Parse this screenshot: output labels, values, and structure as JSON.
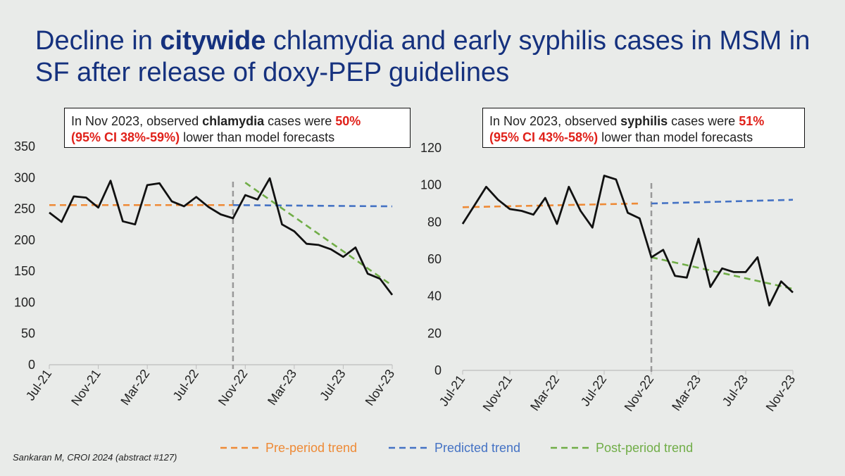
{
  "title": {
    "part1": "Decline in ",
    "part2": "citywide",
    "part3": " chlamydia and early syphilis cases in MSM in SF after release of doxy-PEP guidelines"
  },
  "callouts": {
    "left": {
      "t1": "In Nov 2023, observed ",
      "t2": "chlamydia",
      "t3": " cases were ",
      "t4": "50%",
      "t5": "(95% CI 38%-59%)",
      "t6": " lower than model forecasts"
    },
    "right": {
      "t1": "In Nov 2023, observed ",
      "t2": "syphilis",
      "t3": " cases were ",
      "t4": "51%",
      "t5": "(95% CI 43%-58%)",
      "t6": " lower than model forecasts"
    }
  },
  "legend": {
    "pre": "Pre-period trend",
    "predicted": "Predicted trend",
    "post": "Post-period trend"
  },
  "colors": {
    "title": "#15317e",
    "highlight": "#e0211a",
    "pre": "#ee8a36",
    "predicted": "#4472c4",
    "post": "#70ad47",
    "observed": "#111111",
    "divider": "#999999"
  },
  "citation": "Sankaran M, CROI 2024 (abstract #127)",
  "chart_data": [
    {
      "type": "line",
      "x_tick_labels": [
        "Jul-21",
        "Nov-21",
        "Mar-22",
        "Jul-22",
        "Nov-22",
        "Mar-23",
        "Jul-23",
        "Nov-23"
      ],
      "x_range": [
        "Jul-21",
        "Nov-23"
      ],
      "ylim": [
        0,
        350
      ],
      "y_ticks": [
        0,
        50,
        100,
        150,
        200,
        250,
        300,
        350
      ],
      "intervention_month": "Oct-22",
      "observed": [
        244,
        229,
        270,
        268,
        252,
        295,
        230,
        225,
        288,
        291,
        262,
        254,
        269,
        253,
        241,
        235,
        272,
        265,
        299,
        225,
        214,
        194,
        192,
        185,
        173,
        188,
        146,
        138,
        112
      ],
      "pre_trend": {
        "from": [
          "Jul-21",
          256
        ],
        "to": [
          "Oct-22",
          256
        ]
      },
      "predicted_trend": {
        "from": [
          "Oct-22",
          256
        ],
        "to": [
          "Nov-23",
          254
        ]
      },
      "post_trend": {
        "from": [
          "Nov-22",
          292
        ],
        "to": [
          "Nov-23",
          127
        ]
      }
    },
    {
      "type": "line",
      "x_tick_labels": [
        "Jul-21",
        "Nov-21",
        "Mar-22",
        "Jul-22",
        "Nov-22",
        "Mar-23",
        "Jul-23",
        "Nov-23"
      ],
      "x_range": [
        "Jul-21",
        "Nov-23"
      ],
      "ylim": [
        0,
        120
      ],
      "y_ticks": [
        0,
        20,
        40,
        60,
        80,
        100,
        120
      ],
      "intervention_month": "Nov-22",
      "observed": [
        79,
        89,
        99,
        92,
        87,
        86,
        84,
        93,
        79,
        99,
        86,
        77,
        105,
        103,
        85,
        82,
        61,
        65,
        51,
        50,
        71,
        45,
        55,
        53,
        53,
        61,
        35,
        48,
        42
      ],
      "pre_trend": {
        "from": [
          "Jul-21",
          88
        ],
        "to": [
          "Oct-22",
          90
        ]
      },
      "predicted_trend": {
        "from": [
          "Nov-22",
          90
        ],
        "to": [
          "Nov-23",
          92
        ]
      },
      "post_trend": {
        "from": [
          "Nov-22",
          61
        ],
        "to": [
          "Nov-23",
          44
        ]
      }
    }
  ]
}
